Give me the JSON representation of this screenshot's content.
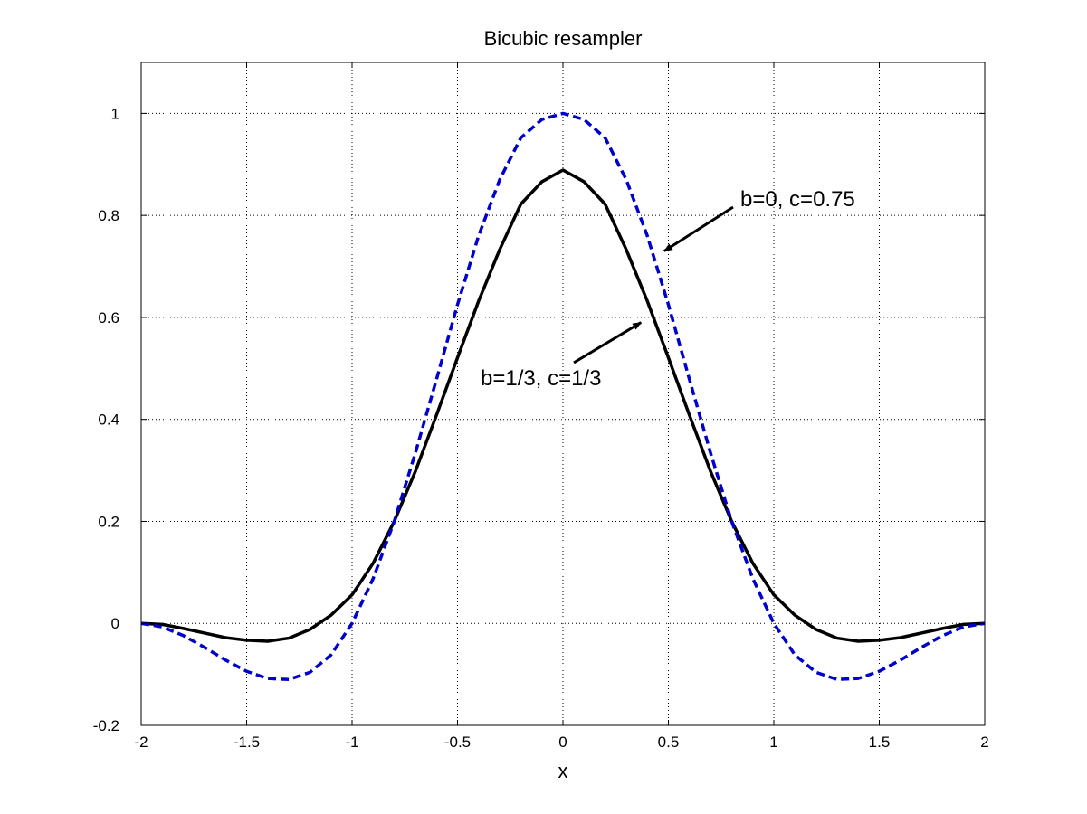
{
  "chart_data": {
    "type": "line",
    "title": "Bicubic resampler",
    "xlabel": "x",
    "ylabel": "",
    "xlim": [
      -2,
      2
    ],
    "ylim": [
      -0.2,
      1.1
    ],
    "xticks": [
      -2,
      -1.5,
      -1,
      -0.5,
      0,
      0.5,
      1,
      1.5,
      2
    ],
    "xtick_labels": [
      "-2",
      "-1.5",
      "-1",
      "-0.5",
      "0",
      "0.5",
      "1",
      "1.5",
      "2"
    ],
    "yticks": [
      -0.2,
      0,
      0.2,
      0.4,
      0.6,
      0.8,
      1
    ],
    "ytick_labels": [
      "-0.2",
      "0",
      "0.2",
      "0.4",
      "0.6",
      "0.8",
      "1"
    ],
    "grid": true,
    "series": [
      {
        "color": "#000000",
        "style": "solid",
        "x": [
          -2,
          -1.9,
          -1.8,
          -1.7,
          -1.6,
          -1.5,
          -1.4,
          -1.3,
          -1.2,
          -1.1,
          -1.0,
          -0.9,
          -0.8,
          -0.7,
          -0.6,
          -0.5,
          -0.4,
          -0.3,
          -0.2,
          -0.1,
          0,
          0.1,
          0.2,
          0.3,
          0.4,
          0.5,
          0.6,
          0.7,
          0.8,
          0.9,
          1.0,
          1.1,
          1.2,
          1.3,
          1.4,
          1.5,
          1.6,
          1.7,
          1.8,
          1.9,
          2
        ],
        "y": [
          0,
          -0.002,
          -0.01,
          -0.019,
          -0.028,
          -0.033,
          -0.035,
          -0.029,
          -0.012,
          0.016,
          0.056,
          0.118,
          0.2,
          0.298,
          0.408,
          0.521,
          0.632,
          0.733,
          0.822,
          0.866,
          0.889,
          0.866,
          0.822,
          0.733,
          0.632,
          0.521,
          0.408,
          0.298,
          0.2,
          0.118,
          0.056,
          0.016,
          -0.012,
          -0.029,
          -0.035,
          -0.033,
          -0.028,
          -0.019,
          -0.01,
          -0.002,
          0
        ]
      },
      {
        "color": "#0000cc",
        "style": "dashed",
        "x": [
          -2,
          -1.9,
          -1.8,
          -1.7,
          -1.6,
          -1.5,
          -1.4,
          -1.3,
          -1.2,
          -1.1,
          -1.0,
          -0.9,
          -0.8,
          -0.7,
          -0.6,
          -0.5,
          -0.4,
          -0.3,
          -0.2,
          -0.1,
          0,
          0.1,
          0.2,
          0.3,
          0.4,
          0.5,
          0.6,
          0.7,
          0.8,
          0.9,
          1.0,
          1.1,
          1.2,
          1.3,
          1.4,
          1.5,
          1.6,
          1.7,
          1.8,
          1.9,
          2
        ],
        "y": [
          0,
          -0.007,
          -0.024,
          -0.047,
          -0.072,
          -0.094,
          -0.108,
          -0.11,
          -0.096,
          -0.062,
          0,
          0.088,
          0.2,
          0.334,
          0.478,
          0.625,
          0.76,
          0.87,
          0.952,
          0.988,
          1.0,
          0.988,
          0.952,
          0.87,
          0.76,
          0.625,
          0.478,
          0.334,
          0.2,
          0.088,
          0,
          -0.062,
          -0.096,
          -0.11,
          -0.108,
          -0.094,
          -0.072,
          -0.047,
          -0.024,
          -0.007,
          0
        ]
      }
    ],
    "annotations": [
      {
        "text": "b=0, c=0.75",
        "arrow_to": [
          0.48,
          0.73
        ]
      },
      {
        "text": "b=1/3, c=1/3",
        "arrow_to": [
          0.37,
          0.59
        ]
      }
    ]
  }
}
